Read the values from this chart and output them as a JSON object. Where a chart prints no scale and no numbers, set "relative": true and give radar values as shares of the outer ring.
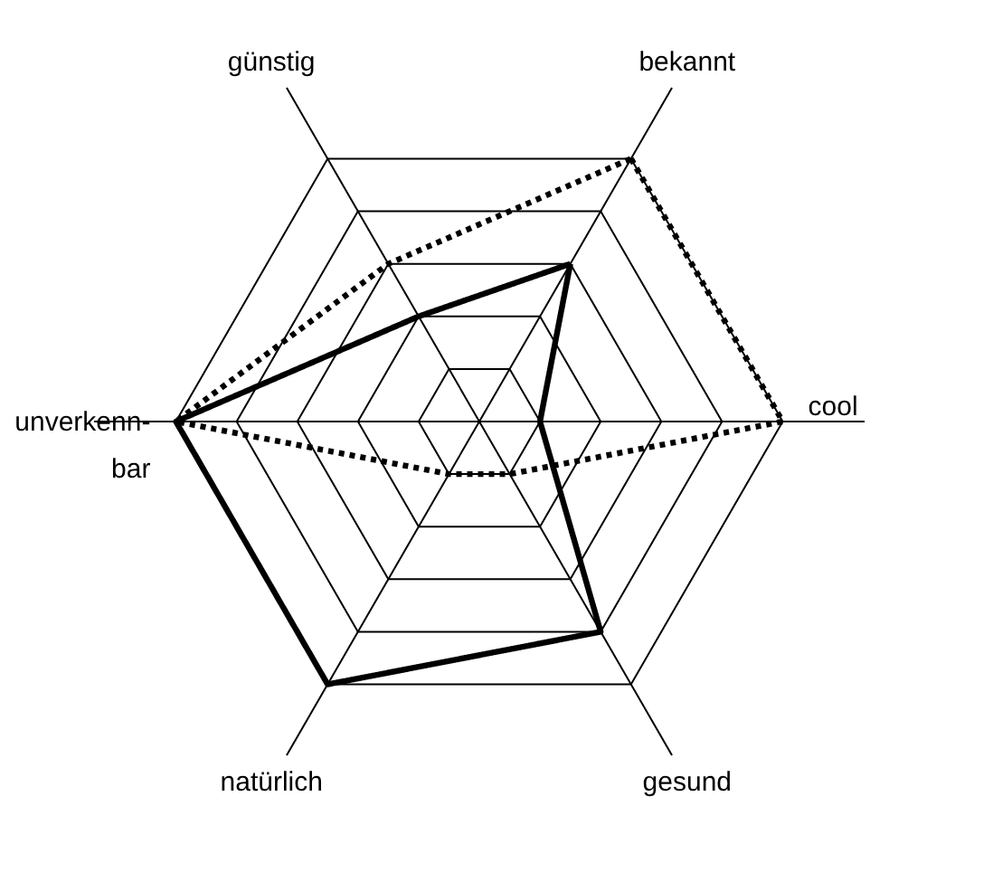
{
  "chart_data": {
    "type": "radar",
    "relative": true,
    "grid": true,
    "categories": [
      "bekannt",
      "cool",
      "gesund",
      "natürlich",
      "unverkenn-\nbar",
      "günstig"
    ],
    "series": [
      {
        "color": "#000000",
        "line_style": "dotted",
        "values": [
          1.0,
          1.0,
          0.2,
          0.2,
          1.0,
          0.6
        ]
      },
      {
        "color": "#000000",
        "line_style": "solid",
        "values": [
          0.6,
          0.2,
          0.8,
          1.0,
          1.0,
          0.4
        ]
      }
    ]
  }
}
